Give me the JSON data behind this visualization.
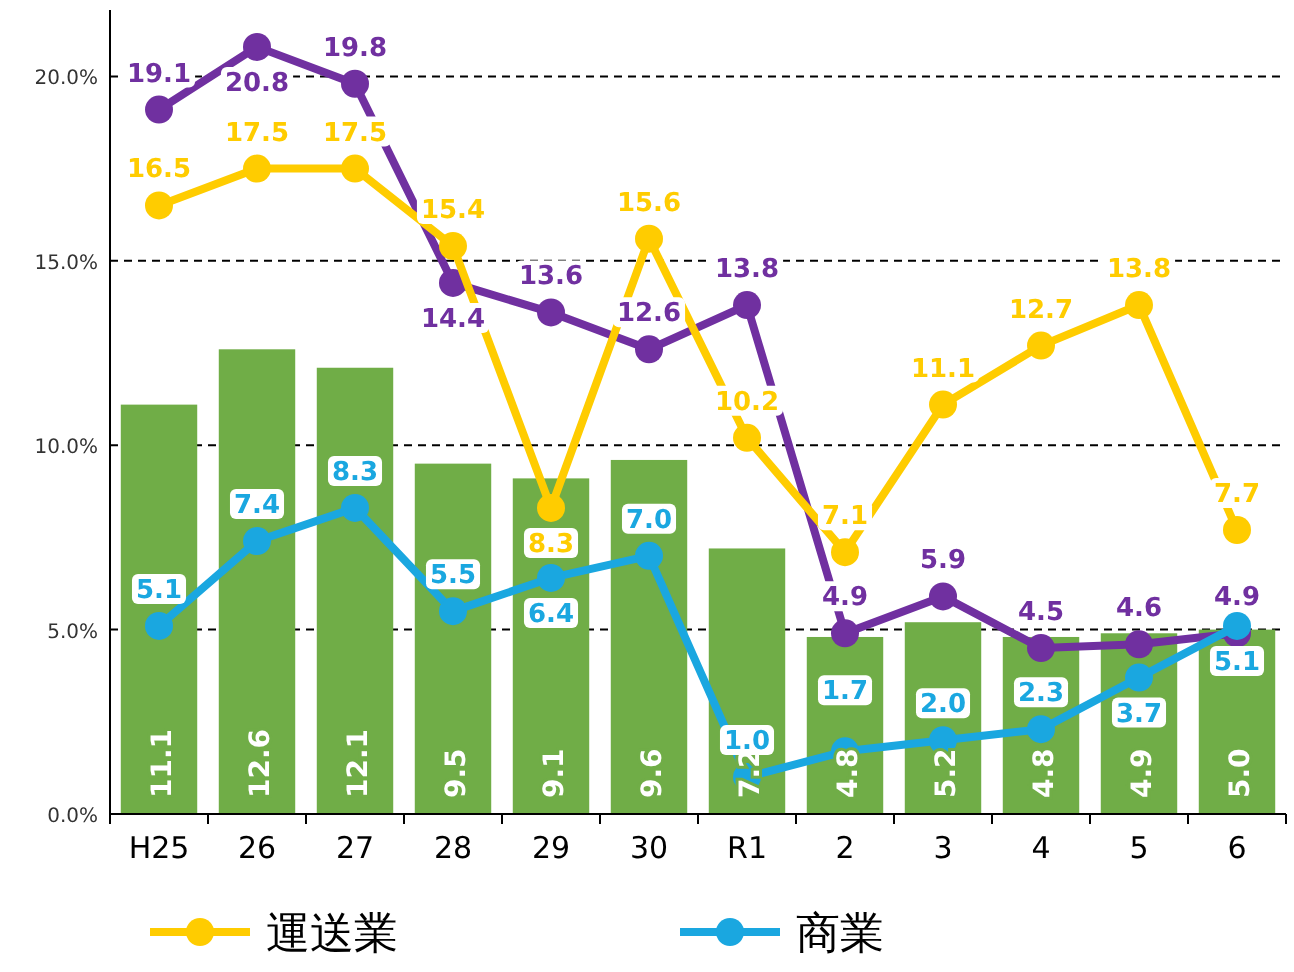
{
  "chart_data": {
    "type": "bar",
    "categories": [
      "H25",
      "26",
      "27",
      "28",
      "29",
      "30",
      "R1",
      "2",
      "3",
      "4",
      "5",
      "6"
    ],
    "ylim": [
      0,
      21.8
    ],
    "yticks": [
      {
        "value": 0,
        "label": "0.0%"
      },
      {
        "value": 5,
        "label": "5.0%"
      },
      {
        "value": 10,
        "label": "10.0%"
      },
      {
        "value": 15,
        "label": "15.0%"
      },
      {
        "value": 20,
        "label": "20.0%"
      }
    ],
    "grid": "y",
    "legend": "bottom",
    "marker": "circle",
    "series": [
      {
        "color": "#70ad47",
        "values": [
          11.1,
          12.6,
          12.1,
          9.5,
          9.1,
          9.6,
          7.2,
          4.8,
          5.2,
          4.8,
          4.9,
          5.0
        ],
        "value_labels": [
          "11.1",
          "12.6",
          "12.1",
          "9.5",
          "9.1",
          "9.6",
          "7.2",
          "4.8",
          "5.2",
          "4.8",
          "4.9",
          "5.0"
        ]
      },
      {
        "type": "line",
        "color": "#7030a0",
        "values": [
          19.1,
          20.8,
          19.8,
          14.4,
          13.6,
          12.6,
          13.8,
          4.9,
          5.9,
          4.5,
          4.6,
          4.9
        ],
        "value_labels": [
          "19.1",
          "20.8",
          "19.8",
          "14.4",
          "13.6",
          "12.6",
          "13.8",
          "4.9",
          "5.9",
          "4.5",
          "4.6",
          "4.9"
        ]
      },
      {
        "type": "line",
        "name": "運送業",
        "color": "#ffcc00",
        "values": [
          16.5,
          17.5,
          17.5,
          15.4,
          8.3,
          15.6,
          10.2,
          7.1,
          11.1,
          12.7,
          13.8,
          7.7
        ],
        "value_labels": [
          "16.5",
          "17.5",
          "17.5",
          "15.4",
          "8.3",
          "15.6",
          "10.2",
          "7.1",
          "11.1",
          "12.7",
          "13.8",
          "7.7"
        ]
      },
      {
        "type": "line",
        "name": "商業",
        "color": "#1aa7e0",
        "values": [
          5.1,
          7.4,
          8.3,
          5.5,
          6.4,
          7.0,
          1.0,
          1.7,
          2.0,
          2.3,
          3.7,
          5.1
        ],
        "value_labels": [
          "5.1",
          "7.4",
          "8.3",
          "5.5",
          "6.4",
          "7.0",
          "1.0",
          "1.7",
          "2.0",
          "2.3",
          "3.7",
          "5.1"
        ]
      }
    ]
  }
}
